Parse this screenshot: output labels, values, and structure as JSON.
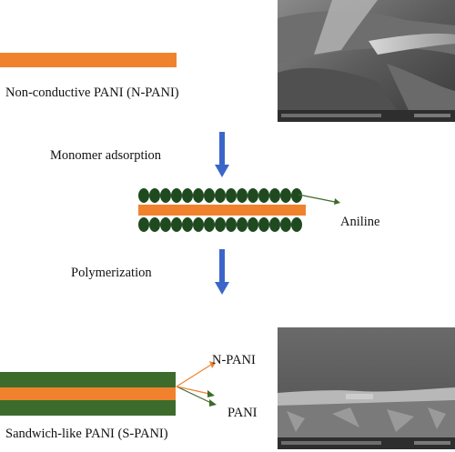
{
  "labels": {
    "n_pani_title": "Non-conductive PANI (N-PANI)",
    "step_adsorption": "Monomer adsorption",
    "aniline": "Aniline",
    "step_polymerization": "Polymerization",
    "n_pani_layer": "N-PANI",
    "pani_layer": "PANI",
    "s_pani_title": "Sandwich-like PANI (S-PANI)"
  },
  "colors": {
    "n_pani_orange": "#F0822E",
    "pani_green": "#3C6B2B",
    "aniline_dark_green": "#1F4A1F",
    "arrow_blue": "#3B66C9",
    "pointer_orange": "#F0822E",
    "pointer_green": "#3C6B2B"
  },
  "icons": {
    "process_arrow": "down-arrow-icon",
    "sem_image_top": "sem-micrograph-sheet",
    "sem_image_bottom": "sem-micrograph-cross-section"
  }
}
